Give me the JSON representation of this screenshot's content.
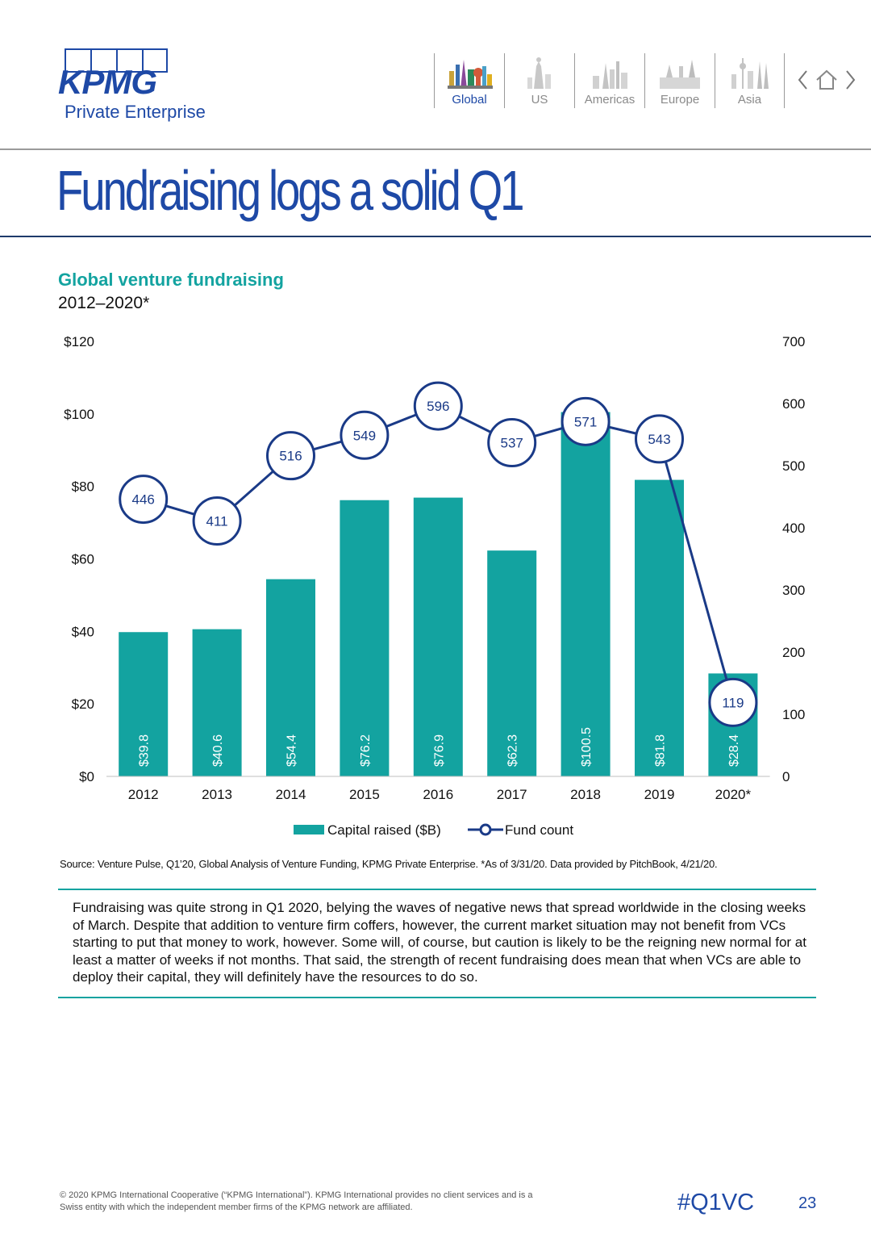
{
  "brand": {
    "name": "KPMG",
    "subtitle": "Private Enterprise"
  },
  "nav": {
    "items": [
      {
        "label": "Global",
        "icon": "global-skyline-icon",
        "active": true
      },
      {
        "label": "US",
        "icon": "us-skyline-icon",
        "active": false
      },
      {
        "label": "Americas",
        "icon": "americas-skyline-icon",
        "active": false
      },
      {
        "label": "Europe",
        "icon": "europe-skyline-icon",
        "active": false
      },
      {
        "label": "Asia",
        "icon": "asia-skyline-icon",
        "active": false
      }
    ]
  },
  "page_title": "Fundraising logs a solid Q1",
  "chart_data": {
    "type": "bar",
    "title": "Global venture fundraising",
    "subtitle": "2012–2020*",
    "categories": [
      "2012",
      "2013",
      "2014",
      "2015",
      "2016",
      "2017",
      "2018",
      "2019",
      "2020*"
    ],
    "series": [
      {
        "name": "Capital raised ($B)",
        "type": "bar",
        "axis": "left",
        "values": [
          39.8,
          40.6,
          54.4,
          76.2,
          76.9,
          62.3,
          100.5,
          81.8,
          28.4
        ],
        "labels": [
          "$39.8",
          "$40.6",
          "$54.4",
          "$76.2",
          "$76.9",
          "$62.3",
          "$100.5",
          "$81.8",
          "$28.4"
        ]
      },
      {
        "name": "Fund count",
        "type": "line",
        "axis": "right",
        "values": [
          446,
          411,
          516,
          549,
          596,
          537,
          571,
          543,
          119
        ]
      }
    ],
    "y_left": {
      "min": 0,
      "max": 120,
      "ticks": [
        "$0",
        "$20",
        "$40",
        "$60",
        "$80",
        "$100",
        "$120"
      ]
    },
    "y_right": {
      "min": 0,
      "max": 700,
      "ticks": [
        "0",
        "100",
        "200",
        "300",
        "400",
        "500",
        "600",
        "700"
      ]
    },
    "legend_position": "bottom",
    "grid": false,
    "colors": {
      "bar": "#13a3a0",
      "line": "#1a3a87",
      "marker_fill": "#ffffff"
    }
  },
  "source": "Source: Venture Pulse, Q1’20, Global Analysis of Venture Funding, KPMG Private Enterprise. *As of 3/31/20. Data provided by PitchBook, 4/21/20.",
  "commentary": "Fundraising was quite strong in Q1 2020, belying the waves of negative news that spread worldwide in the closing weeks of March. Despite that addition to venture firm coffers, however, the current market situation may not benefit from VCs starting to put that money to work, however. Some will, of course, but caution is likely to be the reigning new normal for at least a matter of weeks if not months. That said, the strength of recent fundraising does mean that when VCs are able to deploy their capital, they will definitely have the resources to do so.",
  "footer": {
    "copyright": "© 2020 KPMG International Cooperative (“KPMG International”). KPMG International provides no client services and is a Swiss entity with which the independent member firms of the KPMG network are affiliated.",
    "hashtag": "#Q1VC",
    "page_number": "23"
  }
}
